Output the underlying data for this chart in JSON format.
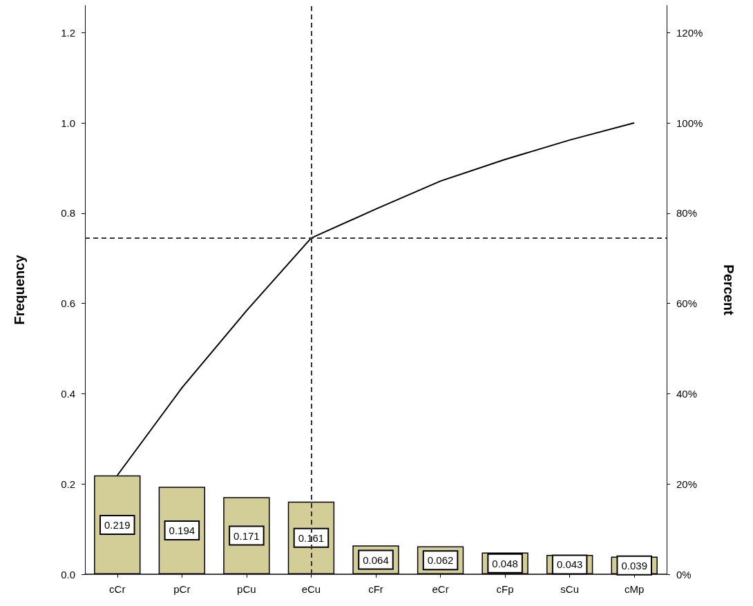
{
  "chart_data": {
    "type": "bar",
    "ylabel": "Frequency",
    "y2label": "Percent",
    "categories": [
      "cCr",
      "pCr",
      "pCu",
      "eCu",
      "cFr",
      "eCr",
      "cFp",
      "sCu",
      "cMp"
    ],
    "series": [
      {
        "color": "#d3cd98",
        "values": [
          0.219,
          0.194,
          0.171,
          0.161,
          0.064,
          0.062,
          0.048,
          0.043,
          0.039
        ],
        "value_labels": [
          "0.219",
          "0.194",
          "0.171",
          "0.161",
          "0.064",
          "0.062",
          "0.048",
          "0.043",
          "0.039"
        ]
      },
      {
        "type": "line",
        "axis": "y2",
        "color": "#000000",
        "values": [
          21.9,
          41.3,
          58.4,
          74.5,
          80.9,
          87.1,
          91.9,
          96.2,
          100
        ]
      }
    ],
    "ylim": [
      0,
      1.26
    ],
    "yticks": [
      {
        "value": 0,
        "label": "0.0"
      },
      {
        "value": 0.2,
        "label": "0.2"
      },
      {
        "value": 0.4,
        "label": "0.4"
      },
      {
        "value": 0.6,
        "label": "0.6"
      },
      {
        "value": 0.8,
        "label": "0.8"
      },
      {
        "value": 1,
        "label": "1.0"
      },
      {
        "value": 1.2,
        "label": "1.2"
      }
    ],
    "y2lim": [
      0,
      126
    ],
    "y2ticks": [
      {
        "value": 0,
        "label": "0%"
      },
      {
        "value": 20,
        "label": "20%"
      },
      {
        "value": 40,
        "label": "40%"
      },
      {
        "value": 60,
        "label": "60%"
      },
      {
        "value": 80,
        "label": "80%"
      },
      {
        "value": 100,
        "label": "100%"
      },
      {
        "value": 120,
        "label": "120%"
      }
    ],
    "ref_lines": [
      {
        "axis": "x",
        "value": "eCu",
        "line_style": "dashed",
        "color": "#333333"
      },
      {
        "axis": "y2",
        "value": 74.5,
        "line_style": "dashed",
        "color": "#333333"
      }
    ],
    "grid": false,
    "marker": "none"
  }
}
